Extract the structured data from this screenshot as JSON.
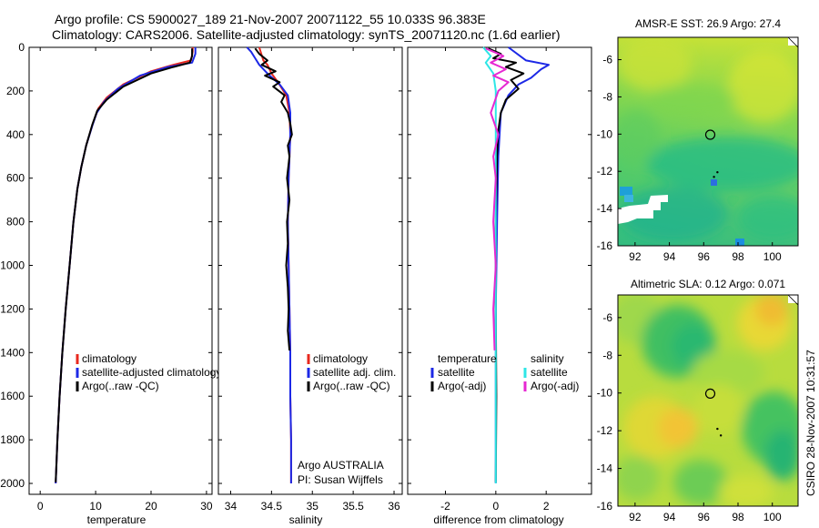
{
  "header": {
    "line1": "Argo profile: CS 5900027_189 21-Nov-2007 20071122_55 10.033S 96.383E",
    "line2": "Climatology: CARS2006. Satellite-adjusted climatology: synTS_20071120.nc (1.6d earlier)"
  },
  "footer": {
    "stamp": "CSIRO 28-Nov-2007 10:31:57"
  },
  "colors": {
    "climatology": "#e8281e",
    "satellite": "#1c28e6",
    "argo": "#000000",
    "cyan": "#2ee6e6",
    "magenta": "#e628d2"
  },
  "chart_data": [
    {
      "id": "temperature",
      "type": "line",
      "xlabel": "temperature",
      "ylabel": "",
      "xlim": [
        -2,
        31
      ],
      "ylim": [
        2050,
        0
      ],
      "xticks": [
        0,
        10,
        20,
        30
      ],
      "xtick_labels": [
        "0",
        "10",
        "20",
        "30"
      ],
      "yticks": [
        0,
        200,
        400,
        600,
        800,
        1000,
        1200,
        1400,
        1600,
        1800,
        2000
      ],
      "ytick_labels": [
        "0",
        "200",
        "400",
        "600",
        "800",
        "1000",
        "1200",
        "1400",
        "1600",
        "1800",
        "2000"
      ],
      "legend": [
        {
          "label": "climatology",
          "color": "#e8281e"
        },
        {
          "label": "satellite-adjusted climatology",
          "color": "#1c28e6"
        },
        {
          "label": "Argo(..raw -QC)",
          "color": "#000000"
        }
      ],
      "series": [
        {
          "name": "climatology",
          "color": "#e8281e",
          "points": [
            [
              27.5,
              0
            ],
            [
              27.5,
              20
            ],
            [
              27.2,
              60
            ],
            [
              24,
              80
            ],
            [
              20,
              110
            ],
            [
              15,
              170
            ],
            [
              12,
              230
            ],
            [
              10.5,
              280
            ],
            [
              9.5,
              350
            ],
            [
              8.3,
              450
            ],
            [
              7.4,
              550
            ],
            [
              6.7,
              650
            ],
            [
              6,
              800
            ],
            [
              5.3,
              1000
            ],
            [
              4.6,
              1200
            ],
            [
              4,
              1400
            ],
            [
              3.5,
              1600
            ],
            [
              3.1,
              1800
            ],
            [
              2.8,
              2000
            ]
          ]
        },
        {
          "name": "satellite-adjusted climatology",
          "color": "#1c28e6",
          "points": [
            [
              28,
              0
            ],
            [
              28,
              30
            ],
            [
              27.4,
              70
            ],
            [
              23,
              90
            ],
            [
              18,
              130
            ],
            [
              14,
              190
            ],
            [
              11.5,
              250
            ],
            [
              10.2,
              300
            ],
            [
              9.4,
              360
            ],
            [
              8.3,
              450
            ],
            [
              7.4,
              550
            ],
            [
              6.7,
              650
            ],
            [
              6,
              800
            ],
            [
              5.3,
              1000
            ],
            [
              4.6,
              1200
            ],
            [
              4,
              1400
            ],
            [
              3.5,
              1600
            ],
            [
              3.1,
              1800
            ],
            [
              2.8,
              2000
            ]
          ]
        },
        {
          "name": "Argo(..raw -QC)",
          "color": "#000000",
          "points": [
            [
              27.4,
              5
            ],
            [
              27.4,
              40
            ],
            [
              27,
              70
            ],
            [
              24,
              90
            ],
            [
              20,
              120
            ],
            [
              15,
              180
            ],
            [
              12,
              240
            ],
            [
              10.3,
              290
            ],
            [
              9.4,
              355
            ],
            [
              8.3,
              450
            ],
            [
              7.4,
              550
            ],
            [
              6.7,
              650
            ],
            [
              6,
              800
            ],
            [
              5.3,
              1000
            ],
            [
              4.6,
              1200
            ],
            [
              4,
              1400
            ],
            [
              3.5,
              1600
            ],
            [
              3.1,
              1800
            ],
            [
              2.8,
              1995
            ]
          ]
        }
      ]
    },
    {
      "id": "salinity",
      "type": "line",
      "xlabel": "salinity",
      "xlim": [
        33.85,
        36.1
      ],
      "ylim": [
        2050,
        0
      ],
      "xticks": [
        34,
        34.5,
        35,
        35.5,
        36
      ],
      "xtick_labels": [
        "34",
        "34.5",
        "35",
        "35.5",
        "36"
      ],
      "legend": [
        {
          "label": "climatology",
          "color": "#e8281e"
        },
        {
          "label": "satellite adj. clim.",
          "color": "#1c28e6"
        },
        {
          "label": "Argo(..raw -QC)",
          "color": "#000000"
        }
      ],
      "annotation": [
        "Argo AUSTRALIA",
        "PI: Susan Wijffels"
      ],
      "series": [
        {
          "name": "climatology",
          "color": "#e8281e",
          "points": [
            [
              34.35,
              0
            ],
            [
              34.4,
              60
            ],
            [
              34.45,
              80
            ],
            [
              34.5,
              120
            ],
            [
              34.58,
              160
            ],
            [
              34.68,
              220
            ],
            [
              34.72,
              300
            ],
            [
              34.73,
              400
            ],
            [
              34.72,
              500
            ],
            [
              34.71,
              600
            ],
            [
              34.7,
              800
            ],
            [
              34.71,
              1000
            ],
            [
              34.72,
              1200
            ],
            [
              34.73,
              1400
            ],
            [
              34.73,
              1600
            ],
            [
              34.74,
              1800
            ],
            [
              34.74,
              2000
            ]
          ]
        },
        {
          "name": "satellite adj. clim.",
          "color": "#1c28e6",
          "points": [
            [
              34.2,
              0
            ],
            [
              34.25,
              20
            ],
            [
              34.3,
              50
            ],
            [
              34.35,
              80
            ],
            [
              34.45,
              120
            ],
            [
              34.6,
              170
            ],
            [
              34.7,
              220
            ],
            [
              34.73,
              300
            ],
            [
              34.73,
              400
            ],
            [
              34.72,
              500
            ],
            [
              34.71,
              600
            ],
            [
              34.7,
              800
            ],
            [
              34.71,
              1000
            ],
            [
              34.72,
              1200
            ],
            [
              34.73,
              1400
            ],
            [
              34.73,
              1600
            ],
            [
              34.74,
              1800
            ],
            [
              34.74,
              2000
            ]
          ]
        },
        {
          "name": "Argo(..raw -QC)",
          "color": "#000000",
          "points": [
            [
              34.3,
              5
            ],
            [
              34.35,
              30
            ],
            [
              34.45,
              60
            ],
            [
              34.38,
              80
            ],
            [
              34.55,
              110
            ],
            [
              34.42,
              130
            ],
            [
              34.6,
              160
            ],
            [
              34.52,
              180
            ],
            [
              34.66,
              220
            ],
            [
              34.62,
              250
            ],
            [
              34.7,
              300
            ],
            [
              34.73,
              350
            ],
            [
              34.75,
              400
            ],
            [
              34.7,
              450
            ],
            [
              34.72,
              500
            ],
            [
              34.69,
              600
            ],
            [
              34.72,
              700
            ],
            [
              34.69,
              800
            ],
            [
              34.7,
              900
            ],
            [
              34.68,
              1000
            ],
            [
              34.7,
              1100
            ],
            [
              34.71,
              1200
            ],
            [
              34.7,
              1300
            ],
            [
              34.72,
              1390
            ]
          ]
        }
      ]
    },
    {
      "id": "difference",
      "type": "line",
      "xlabel": "difference from climatology",
      "xlim": [
        -3.5,
        3.8
      ],
      "ylim": [
        2050,
        0
      ],
      "xticks": [
        -2,
        0,
        2
      ],
      "xtick_labels": [
        "-2",
        "0",
        "2"
      ],
      "legend": [
        {
          "label": "temperature",
          "color": ""
        },
        {
          "label": "salinity",
          "color": ""
        },
        {
          "label": "satellite",
          "color": "#1c28e6"
        },
        {
          "label": "satellite",
          "color": "#2ee6e6"
        },
        {
          "label": "Argo(-adj)",
          "color": "#000000"
        },
        {
          "label": "Argo(-adj)",
          "color": "#e628d2"
        }
      ],
      "series": [
        {
          "name": "temperature satellite",
          "color": "#1c28e6",
          "points": [
            [
              0.5,
              0
            ],
            [
              1.2,
              60
            ],
            [
              2.1,
              80
            ],
            [
              1.8,
              100
            ],
            [
              1.4,
              140
            ],
            [
              0.9,
              170
            ],
            [
              0.5,
              220
            ],
            [
              0.2,
              300
            ],
            [
              0.1,
              500
            ],
            [
              0.05,
              800
            ],
            [
              0,
              1200
            ],
            [
              0,
              2000
            ]
          ]
        },
        {
          "name": "temperature Argo(-adj)",
          "color": "#000000",
          "points": [
            [
              -0.3,
              5
            ],
            [
              0.2,
              30
            ],
            [
              -0.1,
              50
            ],
            [
              0.8,
              70
            ],
            [
              0.4,
              90
            ],
            [
              1.1,
              120
            ],
            [
              0.6,
              150
            ],
            [
              0.9,
              190
            ],
            [
              0.4,
              240
            ],
            [
              0.2,
              300
            ],
            [
              0.1,
              380
            ],
            [
              0.05,
              500
            ],
            [
              0,
              800
            ],
            [
              0,
              1200
            ],
            [
              0.02,
              1600
            ],
            [
              0,
              1995
            ]
          ]
        },
        {
          "name": "salinity satellite",
          "color": "#2ee6e6",
          "points": [
            [
              -0.5,
              0
            ],
            [
              -0.2,
              40
            ],
            [
              -0.4,
              70
            ],
            [
              -0.1,
              120
            ],
            [
              0,
              200
            ],
            [
              0,
              600
            ],
            [
              0,
              1000
            ],
            [
              0,
              1500
            ],
            [
              0,
              2000
            ]
          ]
        },
        {
          "name": "salinity Argo(-adj)",
          "color": "#e628d2",
          "points": [
            [
              -0.4,
              5
            ],
            [
              0.3,
              40
            ],
            [
              -0.2,
              70
            ],
            [
              0.4,
              100
            ],
            [
              -0.1,
              130
            ],
            [
              0.5,
              160
            ],
            [
              0.1,
              200
            ],
            [
              -0.2,
              300
            ],
            [
              0.1,
              400
            ],
            [
              -0.1,
              500
            ],
            [
              0,
              600
            ],
            [
              -0.1,
              800
            ],
            [
              0,
              1000
            ],
            [
              -0.1,
              1200
            ],
            [
              -0.05,
              1390
            ]
          ]
        }
      ]
    },
    {
      "id": "sst-map",
      "type": "heatmap",
      "title": "AMSR-E SST: 26.9 Argo: 27.4",
      "xlim": [
        91,
        101.5
      ],
      "ylim": [
        -16,
        -4.8
      ],
      "xticks": [
        92,
        94,
        96,
        98,
        100
      ],
      "xtick_labels": [
        "92",
        "94",
        "96",
        "98",
        "100"
      ],
      "yticks": [
        -6,
        -8,
        -10,
        -12,
        -14,
        -16
      ],
      "ytick_labels": [
        "-6",
        "-8",
        "-10",
        "-12",
        "-14",
        "-16"
      ],
      "marker": {
        "lon": 96.383,
        "lat": -10.033
      },
      "track": [
        [
          96.8,
          -12.05
        ],
        [
          96.6,
          -12.3
        ]
      ]
    },
    {
      "id": "sla-map",
      "type": "heatmap",
      "title": "Altimetric SLA: 0.12 Argo: 0.071",
      "xlim": [
        91,
        101.5
      ],
      "ylim": [
        -16,
        -4.8
      ],
      "xticks": [
        92,
        94,
        96,
        98,
        100
      ],
      "xtick_labels": [
        "92",
        "94",
        "96",
        "98",
        "100"
      ],
      "yticks": [
        -6,
        -8,
        -10,
        -12,
        -14,
        -16
      ],
      "ytick_labels": [
        "-6",
        "-8",
        "-10",
        "-12",
        "-14",
        "-16"
      ],
      "marker": {
        "lon": 96.383,
        "lat": -10.033
      },
      "track": [
        [
          96.8,
          -11.9
        ],
        [
          97.0,
          -12.25
        ]
      ]
    }
  ]
}
